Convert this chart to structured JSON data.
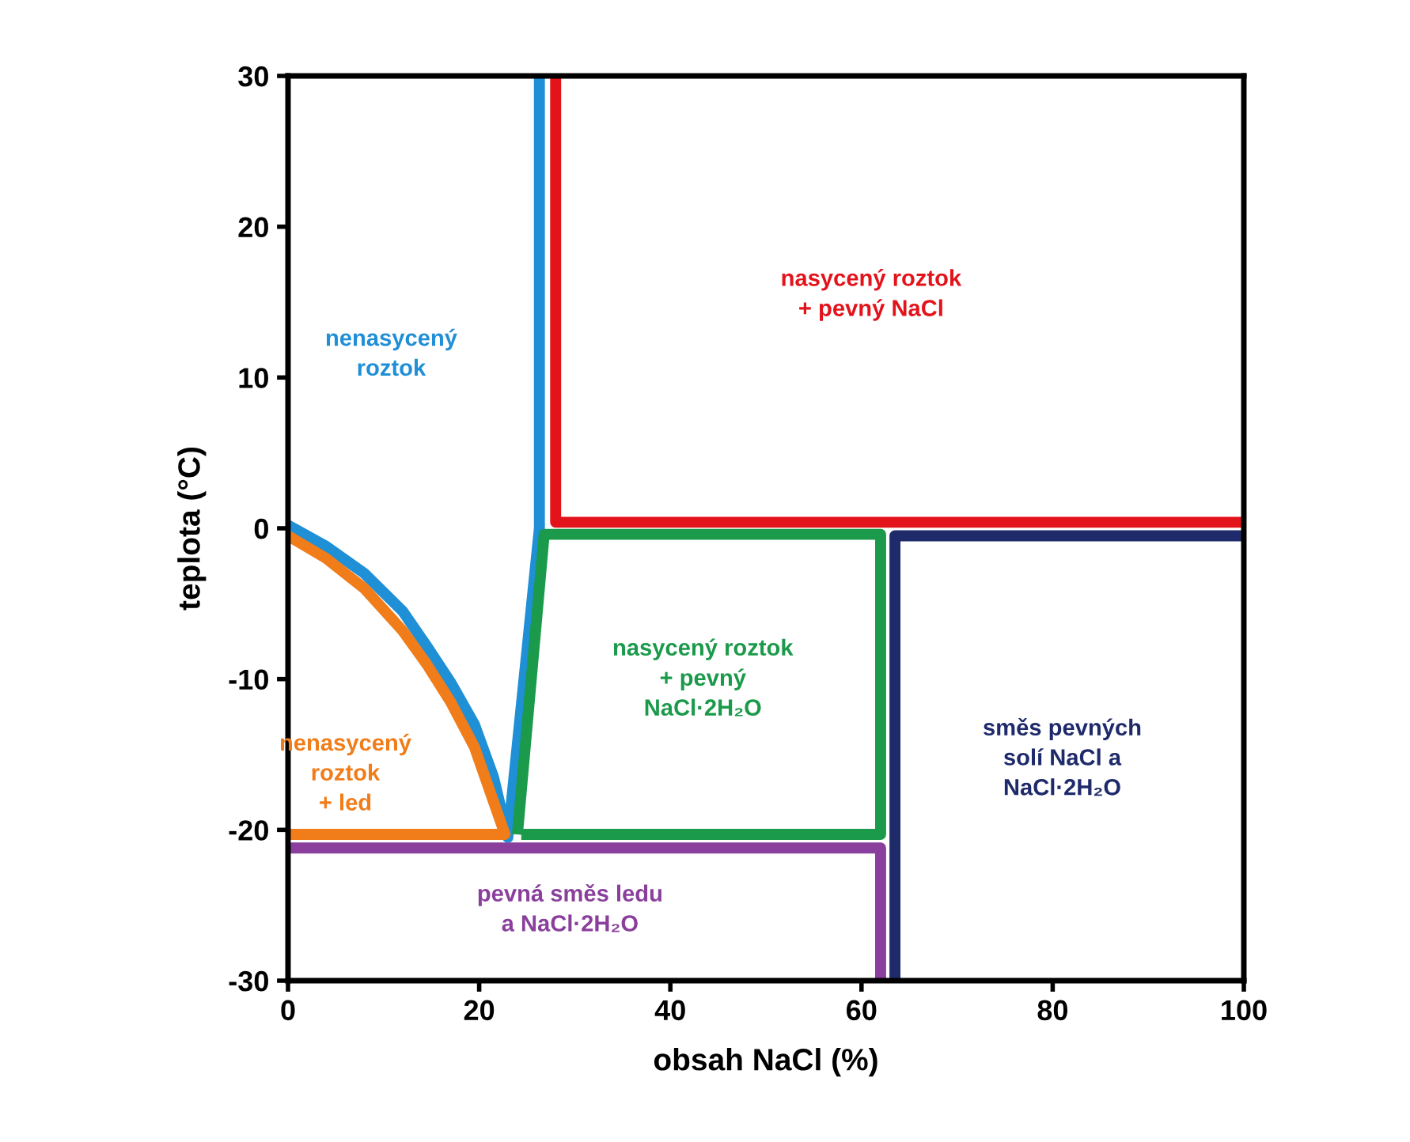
{
  "chart_data": {
    "type": "line",
    "xlabel": "obsah NaCl (%)",
    "ylabel": "teplota (°C)",
    "xlim": [
      0,
      100
    ],
    "xticks": [
      0,
      20,
      40,
      60,
      80,
      100
    ],
    "ylim": [
      -30,
      30
    ],
    "yticks": [
      -30,
      -20,
      -10,
      0,
      10,
      20,
      30
    ],
    "marker": "none",
    "line_style": "solid",
    "series": [
      {
        "color": "#1f8fd6",
        "x": [
          0,
          4,
          8,
          12,
          14.5,
          17,
          19.5,
          21.5,
          23,
          26.3,
          26.3
        ],
        "values": [
          0.2,
          -1.2,
          -3,
          -5.5,
          -7.8,
          -10.2,
          -13,
          -16.5,
          -20.5,
          0,
          30
        ]
      },
      {
        "color": "#e3131b",
        "x": [
          28,
          28,
          100
        ],
        "values": [
          30,
          0.4,
          0.4
        ]
      },
      {
        "color": "#f07d1a",
        "x": [
          0,
          4,
          8,
          12,
          14.5,
          17,
          19.5,
          22.7,
          0
        ],
        "values": [
          -0.5,
          -2,
          -4,
          -6.8,
          -9,
          -11.5,
          -14.5,
          -20.3,
          -20.3
        ]
      },
      {
        "color": "#8a3f9c",
        "x": [
          0,
          62,
          62
        ],
        "values": [
          -21.2,
          -21.2,
          -30
        ]
      },
      {
        "color": "#1f2a6b",
        "x": [
          100,
          63.5,
          63.5
        ],
        "values": [
          -0.5,
          -0.5,
          -30
        ]
      },
      {
        "color": "#1a9a4a",
        "x": [
          24,
          26.8,
          62,
          62,
          24.4
        ],
        "values": [
          -20.3,
          -0.4,
          -0.4,
          -20.3,
          -20.3
        ]
      }
    ],
    "annotations": [
      "nenasycený\nroztok",
      "nasycený roztok\n+ pevný NaCl",
      "nenasycený\nroztok\n+ led",
      "pevná směs ledu\na NaCl·2H₂O",
      "směs pevných\nsolí NaCl a\nNaCl·2H₂O",
      "nasycený roztok\n+ pevný\nNaCl·2H₂O"
    ]
  }
}
